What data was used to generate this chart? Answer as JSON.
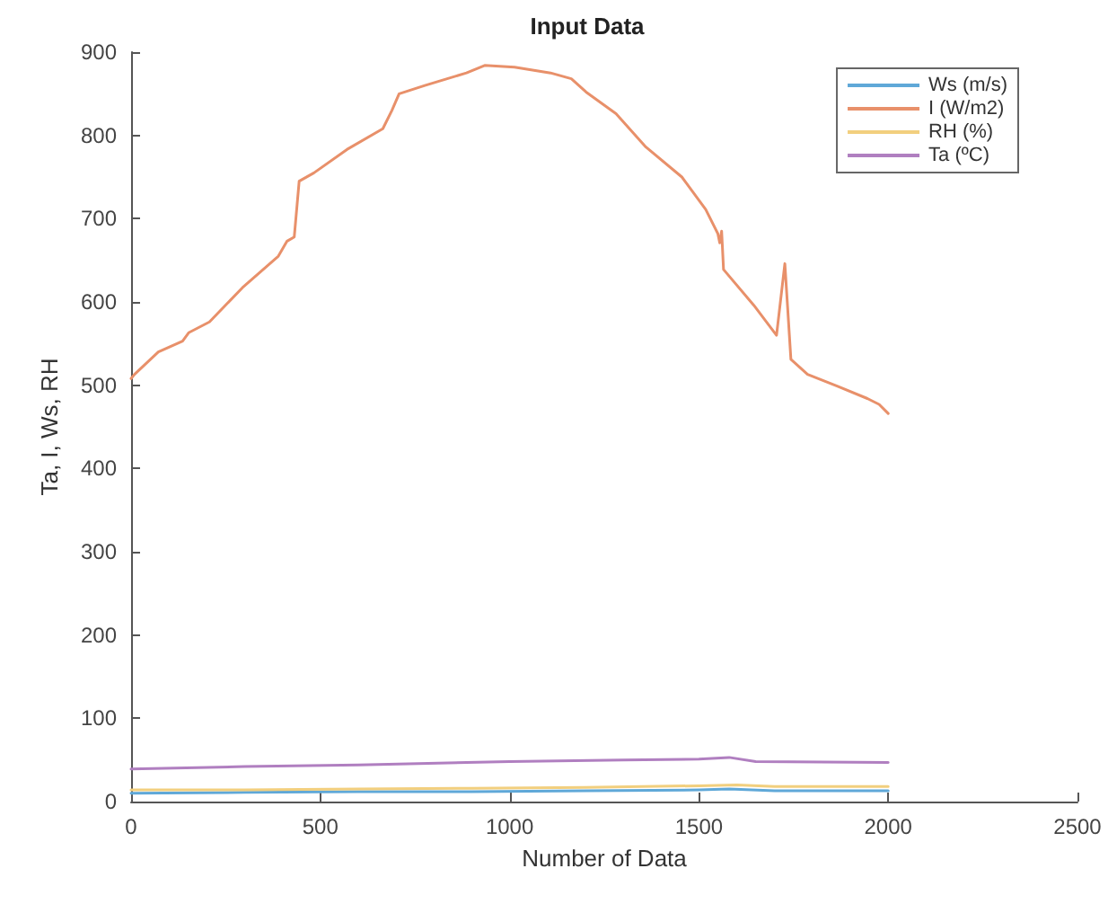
{
  "chart_data": {
    "type": "line",
    "title": "Input Data",
    "xlabel": "Number of Data",
    "ylabel": "Ta, I, Ws, RH",
    "xlim": [
      0,
      2500
    ],
    "xticks": [
      0,
      500,
      1000,
      1500,
      2000,
      2500
    ],
    "ylim": [
      0,
      900
    ],
    "yticks": [
      0,
      100,
      200,
      300,
      400,
      500,
      600,
      700,
      800,
      900
    ],
    "grid": false,
    "legend": "top right",
    "marker": "none",
    "line_style": "solid",
    "series": [
      {
        "name": "Ws (m/s)",
        "color": "#5fa8d8",
        "x": [
          0,
          300,
          600,
          900,
          1200,
          1500,
          1580,
          1700,
          2000
        ],
        "values": [
          10,
          11,
          12,
          12,
          13,
          14,
          15,
          13,
          13
        ]
      },
      {
        "name": "I (W/m2)",
        "color": "#e8906a",
        "x": [
          0,
          9,
          72,
          136,
          152,
          207,
          294,
          389,
          412,
          431,
          444,
          483,
          570,
          665,
          689,
          708,
          776,
          886,
          934,
          1013,
          1108,
          1163,
          1202,
          1281,
          1360,
          1455,
          1518,
          1550,
          1555,
          1560,
          1565,
          1645,
          1705,
          1727,
          1743,
          1787,
          1865,
          1945,
          1976,
          2000
        ],
        "values": [
          508,
          513,
          540,
          553,
          563,
          576,
          617,
          655,
          673,
          678,
          745,
          755,
          783,
          808,
          830,
          850,
          860,
          875,
          884,
          882,
          875,
          868,
          852,
          826,
          786,
          750,
          711,
          682,
          671,
          685,
          639,
          596,
          560,
          646,
          531,
          513,
          499,
          484,
          477,
          466
        ]
      },
      {
        "name": "RH (%)",
        "color": "#f2cf7e",
        "x": [
          0,
          300,
          600,
          900,
          1200,
          1500,
          1600,
          1700,
          2000
        ],
        "values": [
          14,
          14,
          15,
          16,
          17,
          19,
          20,
          18,
          18
        ]
      },
      {
        "name": "Ta (ºC)",
        "color": "#b07fc0",
        "x": [
          0,
          300,
          600,
          1000,
          1300,
          1500,
          1580,
          1650,
          2000
        ],
        "values": [
          39,
          42,
          44,
          48,
          50,
          51,
          53,
          48,
          47
        ]
      }
    ]
  }
}
